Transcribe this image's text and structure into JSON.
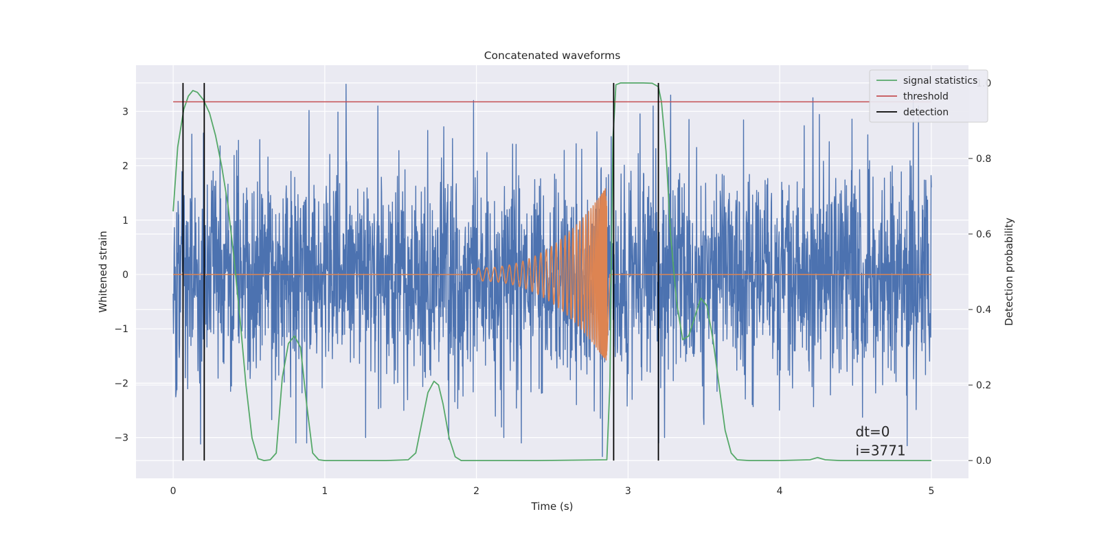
{
  "chart_data": {
    "type": "line",
    "title": "Concatenated waveforms",
    "xlabel": "Time (s)",
    "ylabel": "Whitened strain",
    "y2label": "Detection probability",
    "xlim": [
      -0.245,
      5.245
    ],
    "ylim": [
      -3.75,
      3.85
    ],
    "y2lim": [
      -0.047,
      1.047
    ],
    "xticks": [
      0,
      1,
      2,
      3,
      4,
      5
    ],
    "yticks": [
      -3,
      -2,
      -1,
      0,
      1,
      2,
      3
    ],
    "y2ticks": [
      0.0,
      0.2,
      0.4,
      0.6,
      0.8,
      1.0
    ],
    "xtick_labels": [
      "0",
      "1",
      "2",
      "3",
      "4",
      "5"
    ],
    "ytick_labels": [
      "−3",
      "−2",
      "−1",
      "0",
      "1",
      "2",
      "3"
    ],
    "y2tick_labels": [
      "0.0",
      "0.2",
      "0.4",
      "0.6",
      "0.8",
      "1.0"
    ],
    "grid": true,
    "legend_position": "top-right",
    "series": [
      {
        "name": "whitened strain (noise)",
        "axis": "left",
        "color": "#4c72b0",
        "description": "dense noisy strain, roughly within [-3.2, 3.5]",
        "x_range": [
          0,
          5
        ],
        "envelope_peaks": [
          [
            0.02,
            2.45
          ],
          [
            0.02,
            -2.2
          ],
          [
            0.08,
            -1.9
          ],
          [
            0.18,
            -3.12
          ],
          [
            0.2,
            2.6
          ],
          [
            1.14,
            3.5
          ],
          [
            0.88,
            -3.1
          ],
          [
            1.35,
            3.1
          ],
          [
            1.27,
            -3.0
          ],
          [
            1.98,
            3.2
          ],
          [
            2.18,
            -3.0
          ],
          [
            2.83,
            3.35
          ],
          [
            2.83,
            -3.35
          ],
          [
            3.28,
            3.3
          ],
          [
            3.24,
            -3.0
          ],
          [
            4.22,
            3.25
          ],
          [
            4.88,
            3.35
          ],
          [
            4.84,
            -3.15
          ],
          [
            5.0,
            1.6
          ]
        ]
      },
      {
        "name": "injected signal",
        "axis": "left",
        "color": "#dd8452",
        "description": "zero except chirp from t=2.0 to t=2.86 growing to amplitude ~1.6",
        "chirp_start": 2.0,
        "chirp_end": 2.86,
        "peak_amplitude": 1.62
      },
      {
        "name": "signal statistics",
        "axis": "right",
        "color": "#55a868",
        "x": [
          0.0,
          0.03,
          0.07,
          0.1,
          0.13,
          0.16,
          0.2,
          0.24,
          0.28,
          0.32,
          0.36,
          0.4,
          0.44,
          0.48,
          0.52,
          0.56,
          0.6,
          0.64,
          0.68,
          0.72,
          0.76,
          0.8,
          0.84,
          0.88,
          0.92,
          0.96,
          1.0,
          1.2,
          1.4,
          1.55,
          1.6,
          1.64,
          1.68,
          1.72,
          1.75,
          1.78,
          1.82,
          1.86,
          1.9,
          2.0,
          2.4,
          2.86,
          2.88,
          2.9,
          2.92,
          2.95,
          3.0,
          3.1,
          3.16,
          3.2,
          3.22,
          3.25,
          3.28,
          3.32,
          3.36,
          3.4,
          3.44,
          3.48,
          3.52,
          3.56,
          3.6,
          3.64,
          3.68,
          3.72,
          3.8,
          4.0,
          4.2,
          4.25,
          4.3,
          4.4,
          4.6,
          5.0
        ],
        "y": [
          0.66,
          0.83,
          0.93,
          0.965,
          0.98,
          0.975,
          0.955,
          0.92,
          0.86,
          0.78,
          0.68,
          0.54,
          0.38,
          0.2,
          0.06,
          0.005,
          0.0,
          0.002,
          0.02,
          0.22,
          0.31,
          0.33,
          0.3,
          0.15,
          0.02,
          0.002,
          0.0,
          0.0,
          0.0,
          0.002,
          0.02,
          0.1,
          0.18,
          0.21,
          0.2,
          0.15,
          0.06,
          0.01,
          0.0,
          0.0,
          0.0,
          0.002,
          0.2,
          0.85,
          0.995,
          1.0,
          1.0,
          1.0,
          0.999,
          0.99,
          0.95,
          0.82,
          0.6,
          0.42,
          0.32,
          0.33,
          0.38,
          0.43,
          0.41,
          0.32,
          0.2,
          0.08,
          0.02,
          0.002,
          0.0,
          0.0,
          0.002,
          0.008,
          0.002,
          0.0,
          0.0,
          0.0
        ]
      },
      {
        "name": "threshold",
        "axis": "right",
        "color": "#c44e52",
        "x": [
          0,
          5
        ],
        "y": [
          0.95,
          0.95
        ]
      },
      {
        "name": "detection",
        "axis": "right",
        "color": "#000000",
        "style": "vertical lines",
        "x": [
          0.065,
          0.205,
          2.905,
          3.2
        ],
        "y_extent": [
          0,
          1.0
        ]
      }
    ],
    "legend": [
      "signal statistics",
      "threshold",
      "detection"
    ],
    "annotations": [
      "dt=0",
      "i=3771"
    ]
  }
}
